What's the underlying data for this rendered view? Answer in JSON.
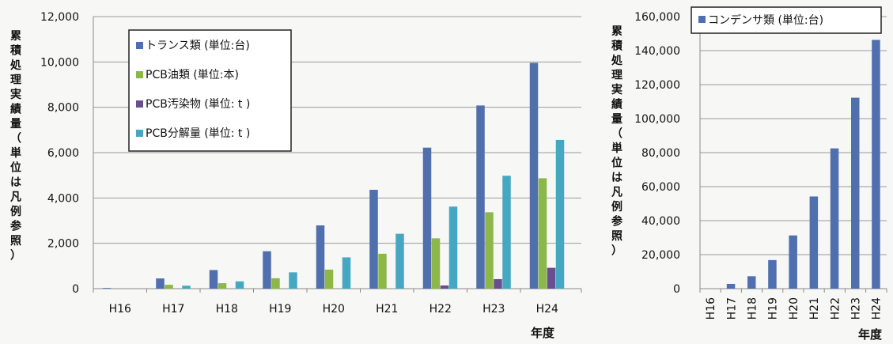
{
  "chart_data": [
    {
      "type": "bar",
      "categories": [
        "H16",
        "H17",
        "H18",
        "H19",
        "H20",
        "H21",
        "H22",
        "H23",
        "H24"
      ],
      "series": [
        {
          "name": "トランス類 (単位:台)",
          "color": "#4f6fae",
          "values": [
            30,
            450,
            820,
            1650,
            2790,
            4360,
            6220,
            8080,
            9960
          ]
        },
        {
          "name": "PCB油類 (単位:本)",
          "color": "#8db848",
          "values": [
            0,
            170,
            240,
            460,
            840,
            1540,
            2220,
            3370,
            4870
          ]
        },
        {
          "name": "PCB汚染物 (単位: t )",
          "color": "#6a4f8f",
          "values": [
            0,
            0,
            0,
            0,
            0,
            0,
            140,
            420,
            920
          ]
        },
        {
          "name": "PCB分解量 (単位: t )",
          "color": "#45a8c2",
          "values": [
            0,
            130,
            320,
            720,
            1380,
            2420,
            3620,
            4980,
            6560
          ]
        }
      ],
      "ylim": [
        0,
        12000
      ],
      "yticks": [
        "0",
        "2,000",
        "4,000",
        "6,000",
        "8,000",
        "10,000",
        "12,000"
      ],
      "ylabel": "累積処理実績量（単位は凡例参照）",
      "xlabel": "年度",
      "legend_position": "top-left",
      "grid": true
    },
    {
      "type": "bar",
      "categories": [
        "H16",
        "H17",
        "H18",
        "H19",
        "H20",
        "H21",
        "H22",
        "H23",
        "H24"
      ],
      "series": [
        {
          "name": "コンデンサ類 (単位:台)",
          "color": "#4f6fae",
          "values": [
            0,
            2800,
            7300,
            16800,
            31300,
            54200,
            82500,
            112300,
            146300
          ]
        }
      ],
      "ylim": [
        0,
        160000
      ],
      "yticks": [
        "0",
        "20,000",
        "40,000",
        "60,000",
        "80,000",
        "100,000",
        "120,000",
        "140,000",
        "160,000"
      ],
      "ylabel": "累積処理実績量（単位は凡例参照）",
      "xlabel": "年度",
      "legend_position": "top",
      "grid": true
    }
  ]
}
